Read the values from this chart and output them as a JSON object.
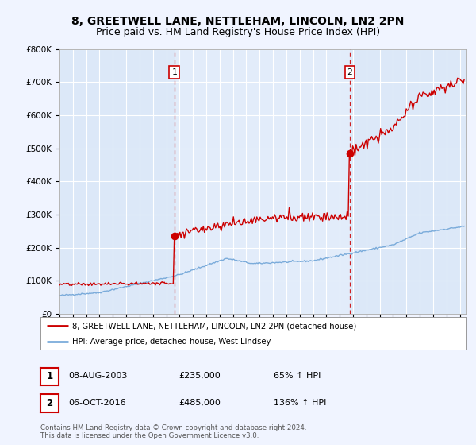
{
  "title": "8, GREETWELL LANE, NETTLEHAM, LINCOLN, LN2 2PN",
  "subtitle": "Price paid vs. HM Land Registry's House Price Index (HPI)",
  "ylabel_ticks": [
    "£0",
    "£100K",
    "£200K",
    "£300K",
    "£400K",
    "£500K",
    "£600K",
    "£700K",
    "£800K"
  ],
  "ytick_values": [
    0,
    100000,
    200000,
    300000,
    400000,
    500000,
    600000,
    700000,
    800000
  ],
  "ylim": [
    0,
    800000
  ],
  "xlim_start": 1995.0,
  "xlim_end": 2025.5,
  "sale1_x": 2003.6,
  "sale1_y": 235000,
  "sale1_label": "1",
  "sale2_x": 2016.75,
  "sale2_y": 485000,
  "sale2_label": "2",
  "red_color": "#cc0000",
  "blue_color": "#7aabda",
  "bg_color": "#f0f4ff",
  "plot_bg_color": "#dce8f8",
  "plot_bg_highlight": "#e8f0fc",
  "grid_color": "#ffffff",
  "legend_entry1": "8, GREETWELL LANE, NETTLEHAM, LINCOLN, LN2 2PN (detached house)",
  "legend_entry2": "HPI: Average price, detached house, West Lindsey",
  "table_row1": [
    "1",
    "08-AUG-2003",
    "£235,000",
    "65% ↑ HPI"
  ],
  "table_row2": [
    "2",
    "06-OCT-2016",
    "£485,000",
    "136% ↑ HPI"
  ],
  "footer": "Contains HM Land Registry data © Crown copyright and database right 2024.\nThis data is licensed under the Open Government Licence v3.0.",
  "title_fontsize": 10,
  "subtitle_fontsize": 9
}
